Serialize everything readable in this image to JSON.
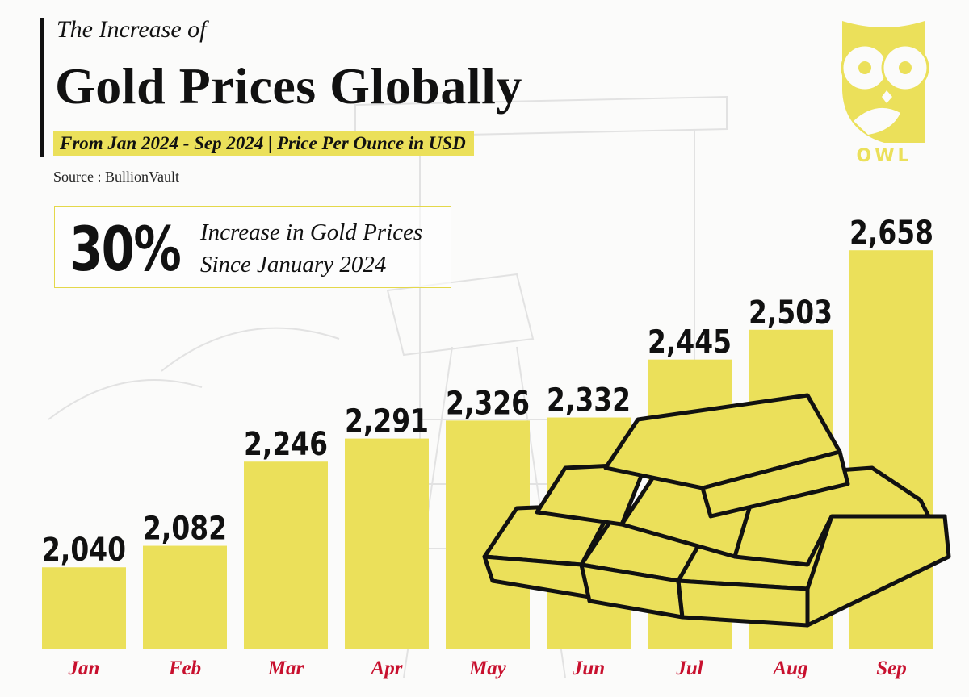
{
  "header": {
    "pretitle": "The Increase of",
    "title": "Gold Prices Globally",
    "subtitle": "From Jan 2024 - Sep 2024 | Price Per Ounce in USD",
    "source": "Source : BullionVault"
  },
  "callout": {
    "value": "30%",
    "line1": "Increase in Gold Prices",
    "line2": "Since January 2024"
  },
  "logo": {
    "text": "OWL"
  },
  "colors": {
    "bar": "#ebe05a",
    "month_label": "#c8102e",
    "value_label": "#111111"
  },
  "chart_data": {
    "type": "bar",
    "title": "Gold Prices Globally",
    "categories": [
      "Jan",
      "Feb",
      "Mar",
      "Apr",
      "May",
      "Jun",
      "Jul",
      "Aug",
      "Sep"
    ],
    "values": [
      2040,
      2082,
      2246,
      2291,
      2326,
      2332,
      2445,
      2503,
      2658
    ],
    "value_labels": [
      "2,040",
      "2,082",
      "2,246",
      "2,291",
      "2,326",
      "2,332",
      "2,445",
      "2,503",
      "2,658"
    ],
    "grid": false,
    "legend": "none"
  }
}
